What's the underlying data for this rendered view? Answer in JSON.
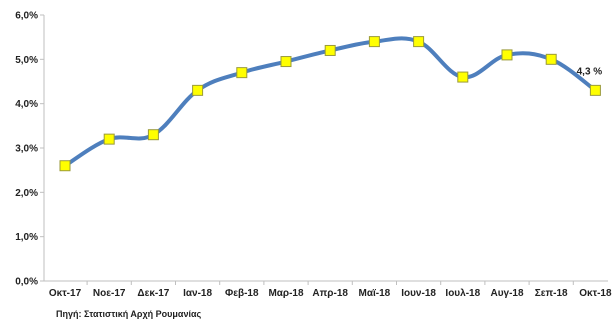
{
  "colors": {
    "line": "#4e7fbd",
    "marker_fill": "#ffff00",
    "marker_stroke": "#9a9a3a",
    "axis": "#bfbfbf",
    "text": "#222222"
  },
  "source_text": "Πηγή: Στατιστική Αρχή Ρουμανίας",
  "chart_data": {
    "type": "line",
    "categories": [
      "Οκτ-17",
      "Νοε-17",
      "Δεκ-17",
      "Ιαν-18",
      "Φεβ-18",
      "Μαρ-18",
      "Απρ-18",
      "Μαϊ-18",
      "Ιουν-18",
      "Ιουλ-18",
      "Αυγ-18",
      "Σεπ-18",
      "Οκτ-18"
    ],
    "series": [
      {
        "values": [
          2.6,
          3.2,
          3.3,
          4.3,
          4.7,
          4.95,
          5.2,
          5.4,
          5.4,
          4.6,
          5.1,
          5.0,
          4.3
        ]
      }
    ],
    "ylim": [
      0,
      6
    ],
    "yticks": [
      0,
      1,
      2,
      3,
      4,
      5,
      6
    ],
    "ytick_labels": [
      "0,0%",
      "1,0%",
      "2,0%",
      "3,0%",
      "4,0%",
      "5,0%",
      "6,0%"
    ],
    "annotations": [
      {
        "index": 12,
        "text": "4,3 %"
      }
    ],
    "grid": false,
    "legend": "none",
    "title": "",
    "xlabel": "",
    "ylabel": ""
  }
}
